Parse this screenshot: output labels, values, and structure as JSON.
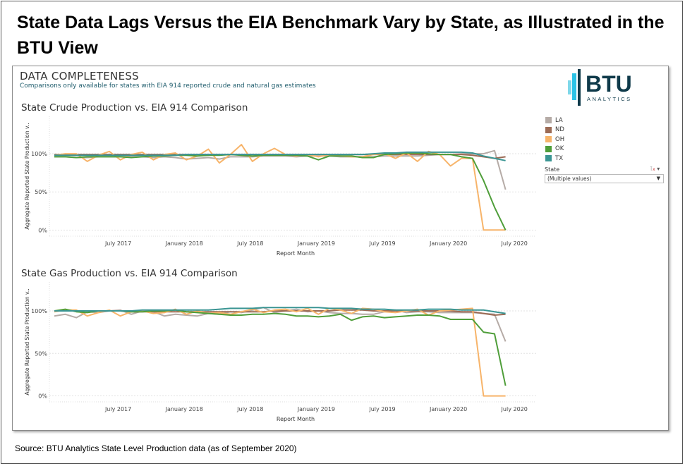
{
  "headline": "State Data Lags Versus the EIA Benchmark Vary by State, as Illustrated in the BTU View",
  "dashboard": {
    "title": "DATA COMPLETENESS",
    "subtitle": "Comparisons only available for states with EIA 914 reported crude and natural gas estimates"
  },
  "logo": {
    "text": "BTU",
    "subtext": "ANALYTICS"
  },
  "legend": [
    {
      "label": "LA",
      "color": "#b5aba6"
    },
    {
      "label": "ND",
      "color": "#9c6b55"
    },
    {
      "label": "OH",
      "color": "#f7b46a"
    },
    {
      "label": "OK",
      "color": "#4f9e3a"
    },
    {
      "label": "TX",
      "color": "#3a9593"
    }
  ],
  "filter": {
    "label": "State",
    "value": "(Multiple values)",
    "filter_icon": "clear-filter-icon",
    "menu_icon": "dropdown-arrow-icon"
  },
  "source": "Source: BTU Analytics State Level Production data (as of September 2020)",
  "chart_data": [
    {
      "type": "line",
      "title": "State Crude Production vs. EIA 914 Comparison",
      "xlabel": "Report Month",
      "ylabel": "Aggregate Reported State Production v..",
      "x_tick_labels": [
        "July 2017",
        "January 2018",
        "July 2018",
        "January 2019",
        "July 2019",
        "January 2020",
        "July 2020"
      ],
      "x_ticks": [
        "2017-07",
        "2018-01",
        "2018-07",
        "2019-01",
        "2019-07",
        "2020-01",
        "2020-07"
      ],
      "y_tick_labels": [
        "0%",
        "50%",
        "100%"
      ],
      "y_ticks": [
        0,
        50,
        100
      ],
      "xlim": [
        "2017-01",
        "2020-08"
      ],
      "ylim": [
        -8,
        149
      ],
      "grid": true,
      "legend": "right",
      "x_start": "2017-01",
      "series": [
        {
          "name": "LA",
          "values": [
            96,
            96,
            95,
            95,
            96,
            96,
            96,
            96,
            96,
            95,
            96,
            95,
            93,
            94,
            95,
            93,
            96,
            96,
            96,
            97,
            97,
            97,
            96,
            97,
            97,
            97,
            96,
            96,
            96,
            96,
            97,
            97,
            97,
            97,
            98,
            99,
            99,
            100,
            100,
            100,
            104,
            53
          ]
        },
        {
          "name": "ND",
          "values": [
            99,
            99,
            99,
            99,
            99,
            99,
            99,
            99,
            99,
            99,
            99,
            99,
            99,
            99,
            99,
            99,
            99,
            99,
            99,
            99,
            99,
            99,
            99,
            99,
            99,
            99,
            99,
            99,
            99,
            99,
            99,
            99,
            99,
            99,
            99,
            99,
            99,
            99,
            98,
            96,
            94,
            96
          ]
        },
        {
          "name": "OH",
          "values": [
            98,
            100,
            100,
            90,
            98,
            103,
            92,
            99,
            102,
            92,
            99,
            101,
            92,
            97,
            106,
            88,
            99,
            112,
            90,
            100,
            107,
            99,
            97,
            99,
            96,
            99,
            97,
            96,
            96,
            99,
            100,
            94,
            101,
            90,
            103,
            99,
            84,
            94,
            94,
            0,
            0,
            0
          ]
        },
        {
          "name": "OK",
          "values": [
            96,
            96,
            95,
            96,
            96,
            96,
            96,
            95,
            96,
            97,
            97,
            98,
            98,
            97,
            98,
            98,
            99,
            98,
            97,
            98,
            98,
            98,
            98,
            97,
            92,
            97,
            97,
            97,
            95,
            95,
            99,
            100,
            101,
            101,
            100,
            99,
            99,
            96,
            94,
            65,
            30,
            0
          ]
        },
        {
          "name": "TX",
          "values": [
            98,
            98,
            98,
            98,
            98,
            98,
            98,
            98,
            98,
            98,
            98,
            98,
            99,
            99,
            99,
            99,
            99,
            99,
            99,
            99,
            99,
            99,
            99,
            99,
            99,
            99,
            99,
            99,
            99,
            100,
            101,
            101,
            102,
            102,
            102,
            102,
            102,
            102,
            101,
            97,
            94,
            91
          ]
        }
      ]
    },
    {
      "type": "line",
      "title": "State Gas Production vs. EIA 914 Comparison",
      "xlabel": "Report Month",
      "ylabel": "Aggregate Reported State Production v..",
      "x_tick_labels": [
        "July 2017",
        "January 2018",
        "July 2018",
        "January 2019",
        "July 2019",
        "January 2020",
        "July 2020"
      ],
      "x_ticks": [
        "2017-07",
        "2018-01",
        "2018-07",
        "2019-01",
        "2019-07",
        "2020-01",
        "2020-07"
      ],
      "y_tick_labels": [
        "0%",
        "50%",
        "100%"
      ],
      "y_ticks": [
        0,
        50,
        100
      ],
      "xlim": [
        "2017-01",
        "2020-08"
      ],
      "ylim": [
        -7,
        134
      ],
      "grid": true,
      "legend": "right",
      "x_start": "2017-01",
      "series": [
        {
          "name": "LA",
          "values": [
            94,
            96,
            92,
            99,
            98,
            100,
            101,
            96,
            100,
            99,
            94,
            96,
            95,
            94,
            97,
            96,
            99,
            98,
            101,
            104,
            98,
            100,
            102,
            99,
            100,
            98,
            97,
            97,
            96,
            96,
            99,
            101,
            98,
            99,
            99,
            98,
            98,
            98,
            98,
            97,
            96,
            64
          ]
        },
        {
          "name": "ND",
          "values": [
            100,
            100,
            100,
            100,
            100,
            100,
            100,
            99,
            99,
            99,
            99,
            99,
            99,
            99,
            99,
            99,
            99,
            99,
            99,
            99,
            100,
            100,
            100,
            100,
            100,
            100,
            101,
            101,
            101,
            100,
            100,
            100,
            100,
            100,
            100,
            100,
            100,
            99,
            99,
            97,
            95,
            96
          ]
        },
        {
          "name": "OH",
          "values": [
            99,
            101,
            101,
            94,
            98,
            101,
            94,
            99,
            100,
            97,
            98,
            102,
            96,
            100,
            97,
            98,
            96,
            99,
            102,
            98,
            101,
            102,
            99,
            103,
            96,
            103,
            101,
            97,
            103,
            102,
            99,
            98,
            100,
            102,
            95,
            100,
            101,
            102,
            103,
            0,
            0,
            0
          ]
        },
        {
          "name": "OK",
          "values": [
            100,
            102,
            99,
            98,
            100,
            100,
            100,
            99,
            99,
            100,
            100,
            101,
            99,
            98,
            97,
            96,
            95,
            95,
            96,
            96,
            97,
            96,
            94,
            94,
            93,
            94,
            96,
            89,
            93,
            94,
            92,
            93,
            94,
            95,
            95,
            94,
            90,
            90,
            90,
            75,
            73,
            12
          ]
        },
        {
          "name": "TX",
          "values": [
            100,
            100,
            100,
            100,
            100,
            100,
            100,
            100,
            101,
            101,
            101,
            101,
            101,
            101,
            101,
            102,
            103,
            103,
            103,
            104,
            104,
            104,
            104,
            104,
            104,
            103,
            103,
            103,
            102,
            102,
            102,
            101,
            101,
            101,
            102,
            102,
            102,
            101,
            101,
            101,
            99,
            97
          ]
        }
      ]
    }
  ]
}
